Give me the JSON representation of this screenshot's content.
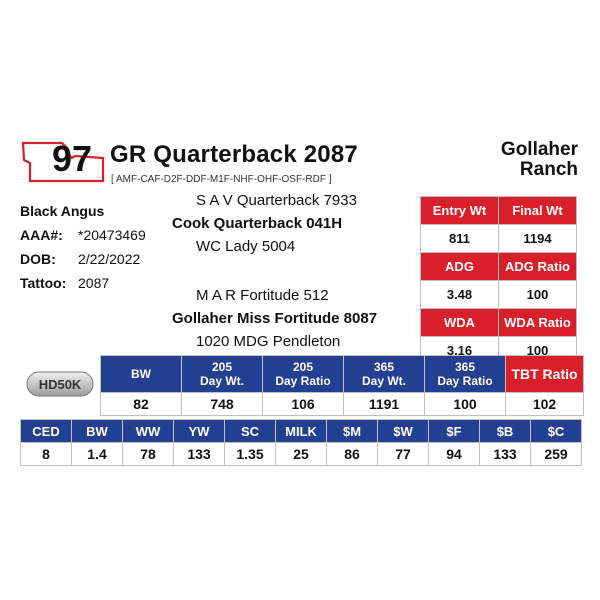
{
  "lot": {
    "number": "97"
  },
  "bull": {
    "name": "GR Quarterback 2087",
    "genetics": "[ AMF-CAF-D2F-DDF-M1F-NHF-OHF-OSF-RDF ]",
    "ranch": [
      "Gollaher",
      "Ranch"
    ]
  },
  "info": {
    "breed": "Black Angus",
    "aaa_label": "AAA#:",
    "aaa": "*20473469",
    "dob_label": "DOB:",
    "dob": "2/22/2022",
    "tattoo_label": "Tattoo:",
    "tattoo": "2087"
  },
  "pedigree": {
    "sire_sire": "S A V Quarterback 7933",
    "sire": "Cook Quarterback 041H",
    "sire_dam": "WC Lady 5004",
    "dam_sire": "M A R Fortitude 512",
    "dam": "Gollaher Miss Fortitude 8087",
    "dam_dam": "1020 MDG Pendleton"
  },
  "right_table": {
    "rows": [
      {
        "h1": "Entry Wt",
        "h2": "Final Wt",
        "v1": "811",
        "v2": "1194"
      },
      {
        "h1": "ADG",
        "h2": "ADG Ratio",
        "v1": "3.48",
        "v2": "100"
      },
      {
        "h1": "WDA",
        "h2": "WDA Ratio",
        "v1": "3.16",
        "v2": "100"
      }
    ]
  },
  "badge": {
    "text": "HD50K"
  },
  "mid_table": {
    "headers": [
      {
        "l1": "BW",
        "l2": ""
      },
      {
        "l1": "205",
        "l2": "Day Wt."
      },
      {
        "l1": "205",
        "l2": "Day Ratio"
      },
      {
        "l1": "365",
        "l2": "Day Wt."
      },
      {
        "l1": "365",
        "l2": "Day Ratio"
      }
    ],
    "tbt_label": "TBT Ratio",
    "values": [
      "82",
      "748",
      "106",
      "1191",
      "100",
      "102"
    ]
  },
  "epd_table": {
    "headers": [
      "CED",
      "BW",
      "WW",
      "YW",
      "SC",
      "MILK",
      "$M",
      "$W",
      "$F",
      "$B",
      "$C"
    ],
    "values": [
      "8",
      "1.4",
      "78",
      "133",
      "1.35",
      "25",
      "86",
      "77",
      "94",
      "133",
      "259"
    ]
  },
  "colors": {
    "red": "#d9202a",
    "blue": "#233f91"
  }
}
